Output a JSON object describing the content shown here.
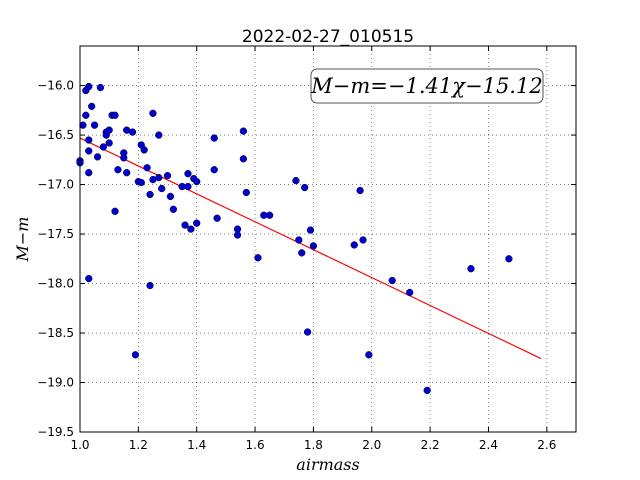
{
  "chart_data": {
    "type": "scatter",
    "title": "2022-02-27_010515",
    "xlabel": "airmass",
    "ylabel": "M−m",
    "xlim": [
      1.0,
      2.7
    ],
    "ylim": [
      -19.5,
      -15.6
    ],
    "xticks": [
      "1.0",
      "1.2",
      "1.4",
      "1.6",
      "1.8",
      "2.0",
      "2.2",
      "2.4",
      "2.6"
    ],
    "yticks": [
      "−16.0",
      "−16.5",
      "−17.0",
      "−17.5",
      "−18.0",
      "−18.5",
      "−19.0",
      "−19.5"
    ],
    "grid": true,
    "annotation": "M−m=−1.41χ−15.12",
    "fit": {
      "slope": -1.41,
      "intercept": -15.12,
      "x_range": [
        1.0,
        2.58
      ],
      "color": "#ff0000"
    },
    "marker_color": "#0000cc",
    "points": [
      [
        1.0,
        -16.76
      ],
      [
        1.0,
        -16.78
      ],
      [
        1.01,
        -16.4
      ],
      [
        1.02,
        -16.05
      ],
      [
        1.02,
        -16.3
      ],
      [
        1.03,
        -16.01
      ],
      [
        1.03,
        -16.55
      ],
      [
        1.03,
        -16.66
      ],
      [
        1.03,
        -16.88
      ],
      [
        1.03,
        -17.95
      ],
      [
        1.04,
        -16.21
      ],
      [
        1.05,
        -16.4
      ],
      [
        1.06,
        -16.72
      ],
      [
        1.07,
        -16.02
      ],
      [
        1.08,
        -16.62
      ],
      [
        1.09,
        -16.47
      ],
      [
        1.09,
        -16.5
      ],
      [
        1.1,
        -16.45
      ],
      [
        1.1,
        -16.58
      ],
      [
        1.11,
        -16.3
      ],
      [
        1.12,
        -16.3
      ],
      [
        1.12,
        -17.27
      ],
      [
        1.13,
        -16.85
      ],
      [
        1.15,
        -16.68
      ],
      [
        1.15,
        -16.73
      ],
      [
        1.16,
        -16.88
      ],
      [
        1.16,
        -16.45
      ],
      [
        1.18,
        -16.47
      ],
      [
        1.19,
        -18.72
      ],
      [
        1.2,
        -16.97
      ],
      [
        1.21,
        -16.6
      ],
      [
        1.21,
        -16.98
      ],
      [
        1.22,
        -16.65
      ],
      [
        1.23,
        -16.83
      ],
      [
        1.24,
        -17.1
      ],
      [
        1.24,
        -18.02
      ],
      [
        1.25,
        -16.28
      ],
      [
        1.25,
        -16.95
      ],
      [
        1.27,
        -16.5
      ],
      [
        1.27,
        -16.93
      ],
      [
        1.28,
        -17.04
      ],
      [
        1.3,
        -16.91
      ],
      [
        1.31,
        -17.12
      ],
      [
        1.32,
        -17.25
      ],
      [
        1.35,
        -17.02
      ],
      [
        1.36,
        -17.41
      ],
      [
        1.37,
        -16.89
      ],
      [
        1.37,
        -17.02
      ],
      [
        1.38,
        -17.45
      ],
      [
        1.39,
        -16.94
      ],
      [
        1.4,
        -17.39
      ],
      [
        1.4,
        -16.97
      ],
      [
        1.46,
        -16.85
      ],
      [
        1.46,
        -16.53
      ],
      [
        1.47,
        -17.34
      ],
      [
        1.54,
        -17.45
      ],
      [
        1.54,
        -17.51
      ],
      [
        1.56,
        -16.46
      ],
      [
        1.56,
        -16.74
      ],
      [
        1.57,
        -17.08
      ],
      [
        1.61,
        -17.74
      ],
      [
        1.63,
        -17.31
      ],
      [
        1.65,
        -17.31
      ],
      [
        1.74,
        -16.96
      ],
      [
        1.75,
        -17.56
      ],
      [
        1.76,
        -17.69
      ],
      [
        1.77,
        -17.03
      ],
      [
        1.78,
        -18.49
      ],
      [
        1.79,
        -17.46
      ],
      [
        1.8,
        -17.62
      ],
      [
        1.94,
        -17.61
      ],
      [
        1.96,
        -17.06
      ],
      [
        1.97,
        -17.56
      ],
      [
        1.99,
        -18.72
      ],
      [
        2.07,
        -17.97
      ],
      [
        2.13,
        -18.09
      ],
      [
        2.19,
        -19.08
      ],
      [
        2.34,
        -17.85
      ],
      [
        2.47,
        -17.75
      ]
    ]
  }
}
